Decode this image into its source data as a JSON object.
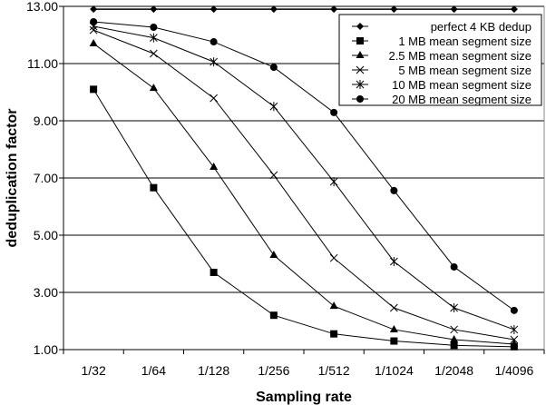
{
  "chart_data": {
    "type": "line",
    "title": "",
    "xlabel": "Sampling rate",
    "ylabel": "deduplication factor",
    "categories": [
      "1/32",
      "1/64",
      "1/128",
      "1/256",
      "1/512",
      "1/1024",
      "1/2048",
      "1/4096"
    ],
    "ylim": [
      1,
      13
    ],
    "yticks": [
      "1.00",
      "3.00",
      "5.00",
      "7.00",
      "9.00",
      "11.00",
      "13.00"
    ],
    "grid": "horizontal",
    "legend_position": "top-right",
    "series": [
      {
        "name": "perfect 4 KB dedup",
        "marker": "diamond",
        "values": [
          12.9,
          12.9,
          12.9,
          12.9,
          12.9,
          12.9,
          12.9,
          12.9
        ]
      },
      {
        "name": "1 MB mean segment size",
        "marker": "square",
        "values": [
          10.1,
          6.66,
          3.7,
          2.2,
          1.55,
          1.3,
          1.15,
          1.1
        ]
      },
      {
        "name": "2.5 MB mean segment size",
        "marker": "triangle",
        "values": [
          11.7,
          10.14,
          7.38,
          4.3,
          2.52,
          1.7,
          1.35,
          1.19
        ]
      },
      {
        "name": "5 MB mean segment size",
        "marker": "x",
        "values": [
          12.17,
          11.35,
          9.79,
          7.1,
          4.2,
          2.46,
          1.7,
          1.35
        ]
      },
      {
        "name": "10 MB mean segment size",
        "marker": "star",
        "values": [
          12.3,
          11.9,
          11.06,
          9.5,
          6.87,
          4.08,
          2.46,
          1.7
        ]
      },
      {
        "name": "20 MB mean segment size",
        "marker": "circle",
        "values": [
          12.46,
          12.27,
          11.76,
          10.87,
          9.29,
          6.56,
          3.89,
          2.37
        ]
      }
    ]
  }
}
